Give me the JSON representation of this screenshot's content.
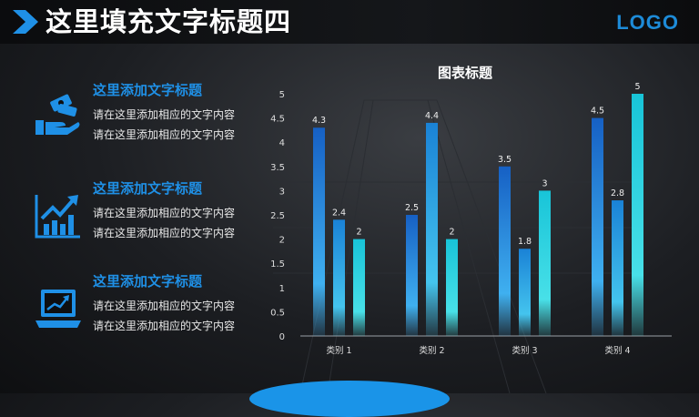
{
  "slide": {
    "title": "这里填充文字标题四",
    "logo": "LOGO",
    "colors": {
      "accent": "#1f90e6",
      "bar_dark": "#1565c0",
      "bar_cyan": "#19c6d6"
    }
  },
  "items": [
    {
      "icon": "money-hand-icon",
      "heading": "这里添加文字标题",
      "line1": "请在这里添加相应的文字内容",
      "line2": "请在这里添加相应的文字内容"
    },
    {
      "icon": "growth-chart-icon",
      "heading": "这里添加文字标题",
      "line1": "请在这里添加相应的文字内容",
      "line2": "请在这里添加相应的文字内容"
    },
    {
      "icon": "laptop-chart-icon",
      "heading": "这里添加文字标题",
      "line1": "请在这里添加相应的文字内容",
      "line2": "请在这里添加相应的文字内容"
    }
  ],
  "chart_data": {
    "type": "bar",
    "title": "图表标题",
    "categories": [
      "类别 1",
      "类别 2",
      "类别 3",
      "类别 4"
    ],
    "series": [
      {
        "values": [
          4.3,
          2.5,
          3.5,
          4.5
        ]
      },
      {
        "values": [
          2.4,
          4.4,
          1.8,
          2.8
        ]
      },
      {
        "values": [
          2,
          2,
          3,
          5
        ]
      }
    ],
    "y_ticks": [
      "0",
      "0.5",
      "1",
      "1.5",
      "2",
      "2.5",
      "3",
      "3.5",
      "4",
      "4.5",
      "5"
    ],
    "ylim": [
      0,
      5
    ],
    "grid": false,
    "legend": "none"
  }
}
